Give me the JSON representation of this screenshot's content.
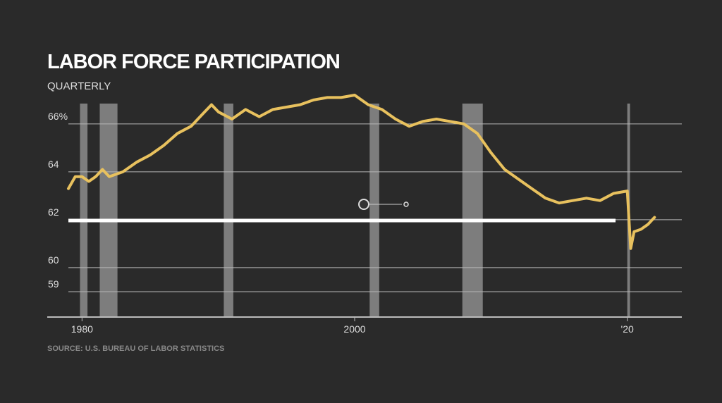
{
  "chart_data": {
    "type": "line",
    "title": "LABOR FORCE PARTICIPATION",
    "subtitle": "QUARTERLY",
    "source": "SOURCE: U.S. BUREAU OF LABOR STATISTICS",
    "x": [
      1979,
      1979.5,
      1980,
      1980.5,
      1981,
      1981.5,
      1982,
      1982.5,
      1983,
      1984,
      1985,
      1986,
      1987,
      1988,
      1989,
      1989.5,
      1990,
      1991,
      1992,
      1993,
      1994,
      1995,
      1996,
      1997,
      1998,
      1999,
      2000,
      2001,
      2002,
      2003,
      2004,
      2005,
      2006,
      2007,
      2008,
      2009,
      2010,
      2011,
      2012,
      2013,
      2014,
      2015,
      2016,
      2017,
      2018,
      2019,
      2020,
      2020.25,
      2020.5,
      2021,
      2021.5,
      2022
    ],
    "values": [
      63.3,
      63.8,
      63.8,
      63.6,
      63.8,
      64.1,
      63.8,
      63.9,
      64.0,
      64.4,
      64.7,
      65.1,
      65.6,
      65.9,
      66.5,
      66.8,
      66.5,
      66.2,
      66.6,
      66.3,
      66.6,
      66.7,
      66.8,
      67.0,
      67.1,
      67.1,
      67.2,
      66.8,
      66.6,
      66.2,
      65.9,
      66.1,
      66.2,
      66.1,
      66.0,
      65.6,
      64.8,
      64.1,
      63.7,
      63.3,
      62.9,
      62.7,
      62.8,
      62.9,
      62.8,
      63.1,
      63.2,
      60.8,
      61.5,
      61.6,
      61.8,
      62.1
    ],
    "color": "#e8c15e",
    "recessions": [
      [
        1979.85,
        1980.4
      ],
      [
        1981.3,
        1982.6
      ],
      [
        1990.4,
        1991.1
      ],
      [
        2001.1,
        2001.8
      ],
      [
        2007.9,
        2009.4
      ],
      [
        2020.0,
        2020.2
      ]
    ],
    "xlim": [
      1979,
      2024
    ],
    "xticks": [
      1980,
      2000,
      {
        "value": 2020,
        "label": "'20"
      }
    ],
    "ylim": [
      57.94,
      67.2
    ],
    "yticks": [
      59,
      60,
      62,
      64,
      {
        "value": 66,
        "label": "66%"
      }
    ],
    "grid": true
  }
}
